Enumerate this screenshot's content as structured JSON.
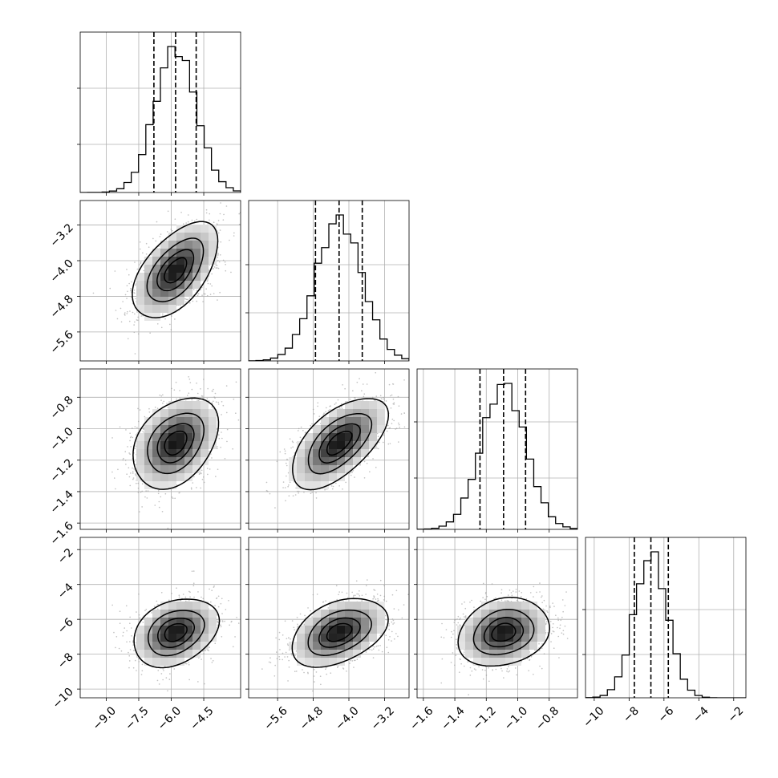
{
  "chart_data": {
    "type": "corner",
    "title": "",
    "parameters": [
      {
        "range": [
          -10.2,
          -2.8
        ],
        "ticks": [
          -9.0,
          -7.5,
          -6.0,
          -4.5
        ],
        "tick_labels": [
          "−9.0",
          "−7.5",
          "−6.0",
          "−4.5"
        ],
        "mean": -5.8,
        "sd": 0.95,
        "quantiles": [
          -6.8,
          -5.8,
          -4.85
        ]
      },
      {
        "range": [
          -6.25,
          -2.65
        ],
        "ticks": [
          -5.6,
          -4.8,
          -4.0,
          -3.2
        ],
        "tick_labels": [
          "−5.6",
          "−4.8",
          "−4.0",
          "−3.2"
        ],
        "mean": -4.22,
        "sd": 0.52,
        "quantiles": [
          -4.75,
          -4.22,
          -3.7
        ]
      },
      {
        "range": [
          -1.64,
          -0.62
        ],
        "ticks": [
          -1.6,
          -1.4,
          -1.2,
          -1.0,
          -0.8
        ],
        "tick_labels": [
          "−1.6",
          "−1.4",
          "−1.2",
          "−1.0",
          "−0.8"
        ],
        "mean": -1.09,
        "sd": 0.14,
        "quantiles": [
          -1.24,
          -1.09,
          -0.95
        ]
      },
      {
        "range": [
          -10.5,
          -1.3
        ],
        "ticks": [
          -10,
          -8,
          -6,
          -4,
          -2
        ],
        "tick_labels": [
          "−10",
          "−8",
          "−6",
          "−4",
          "−2"
        ],
        "mean": -6.75,
        "sd": 0.95,
        "quantiles": [
          -7.7,
          -6.75,
          -5.75
        ]
      }
    ],
    "histogram_yticks": [
      [
        0.3,
        0.65
      ],
      [
        0.3,
        0.6
      ],
      [
        0.32,
        0.67
      ],
      [
        0.27,
        0.55
      ]
    ],
    "correlations": {
      "1-0": 0.55,
      "2-0": 0.35,
      "2-1": 0.6,
      "3-0": 0.3,
      "3-1": 0.4,
      "3-2": 0.2
    },
    "contour_levels_sigma": [
      0.5,
      1.0,
      1.5,
      2.0
    ],
    "grid": true
  }
}
